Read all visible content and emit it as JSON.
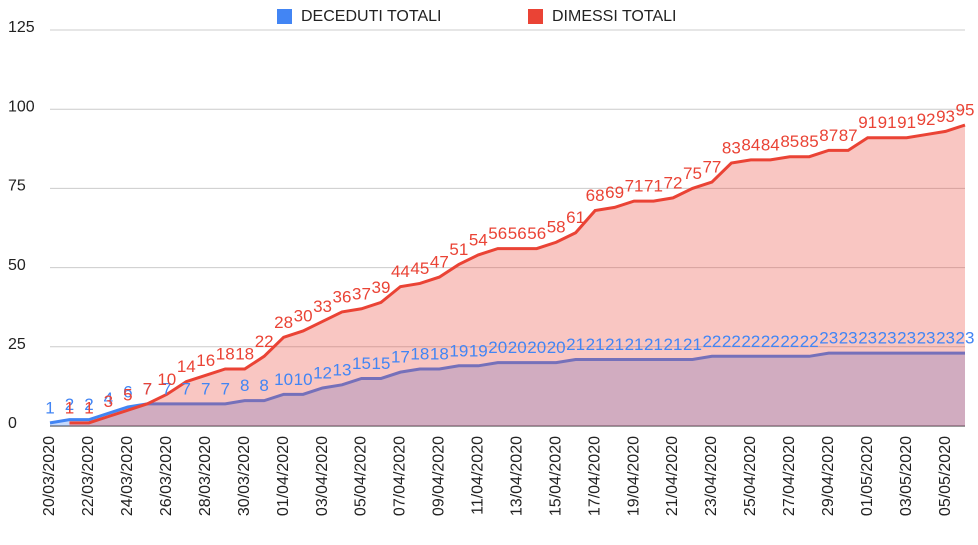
{
  "chart_data": {
    "type": "area",
    "legend": "top",
    "grid": true,
    "categories": [
      "20/03/2020",
      null,
      "22/03/2020",
      null,
      "24/03/2020",
      null,
      "26/03/2020",
      null,
      "28/03/2020",
      null,
      "30/03/2020",
      null,
      "01/04/2020",
      null,
      "03/04/2020",
      null,
      "05/04/2020",
      null,
      "07/04/2020",
      null,
      "09/04/2020",
      null,
      "11/04/2020",
      null,
      "13/04/2020",
      null,
      "15/04/2020",
      null,
      "17/04/2020",
      null,
      "19/04/2020",
      null,
      "21/04/2020",
      null,
      "23/04/2020",
      null,
      "25/04/2020",
      null,
      "27/04/2020",
      null,
      "29/04/2020",
      null,
      "01/05/2020",
      null,
      "03/05/2020",
      null,
      "05/05/2020",
      null
    ],
    "series": [
      {
        "name": "DECEDUTI TOTALI",
        "color": "#4285f4",
        "values": [
          1,
          2,
          2,
          4,
          6,
          7,
          7,
          7,
          7,
          7,
          8,
          8,
          10,
          10,
          12,
          13,
          15,
          15,
          17,
          18,
          18,
          19,
          19,
          20,
          20,
          20,
          20,
          21,
          21,
          21,
          21,
          21,
          21,
          21,
          22,
          22,
          22,
          22,
          22,
          22,
          23,
          23,
          23,
          23,
          23,
          23,
          23,
          23
        ]
      },
      {
        "name": "DIMESSI TOTALI",
        "color": "#ea4335",
        "values": [
          null,
          1,
          1,
          3,
          5,
          7,
          10,
          14,
          16,
          18,
          18,
          22,
          28,
          30,
          33,
          36,
          37,
          39,
          44,
          45,
          47,
          51,
          54,
          56,
          56,
          56,
          58,
          61,
          68,
          69,
          71,
          71,
          72,
          75,
          77,
          83,
          84,
          84,
          85,
          85,
          87,
          87,
          91,
          91,
          91,
          92,
          93,
          95
        ]
      }
    ],
    "ylim": [
      0,
      125
    ],
    "yticks": [
      0,
      25,
      50,
      75,
      100,
      125
    ]
  }
}
